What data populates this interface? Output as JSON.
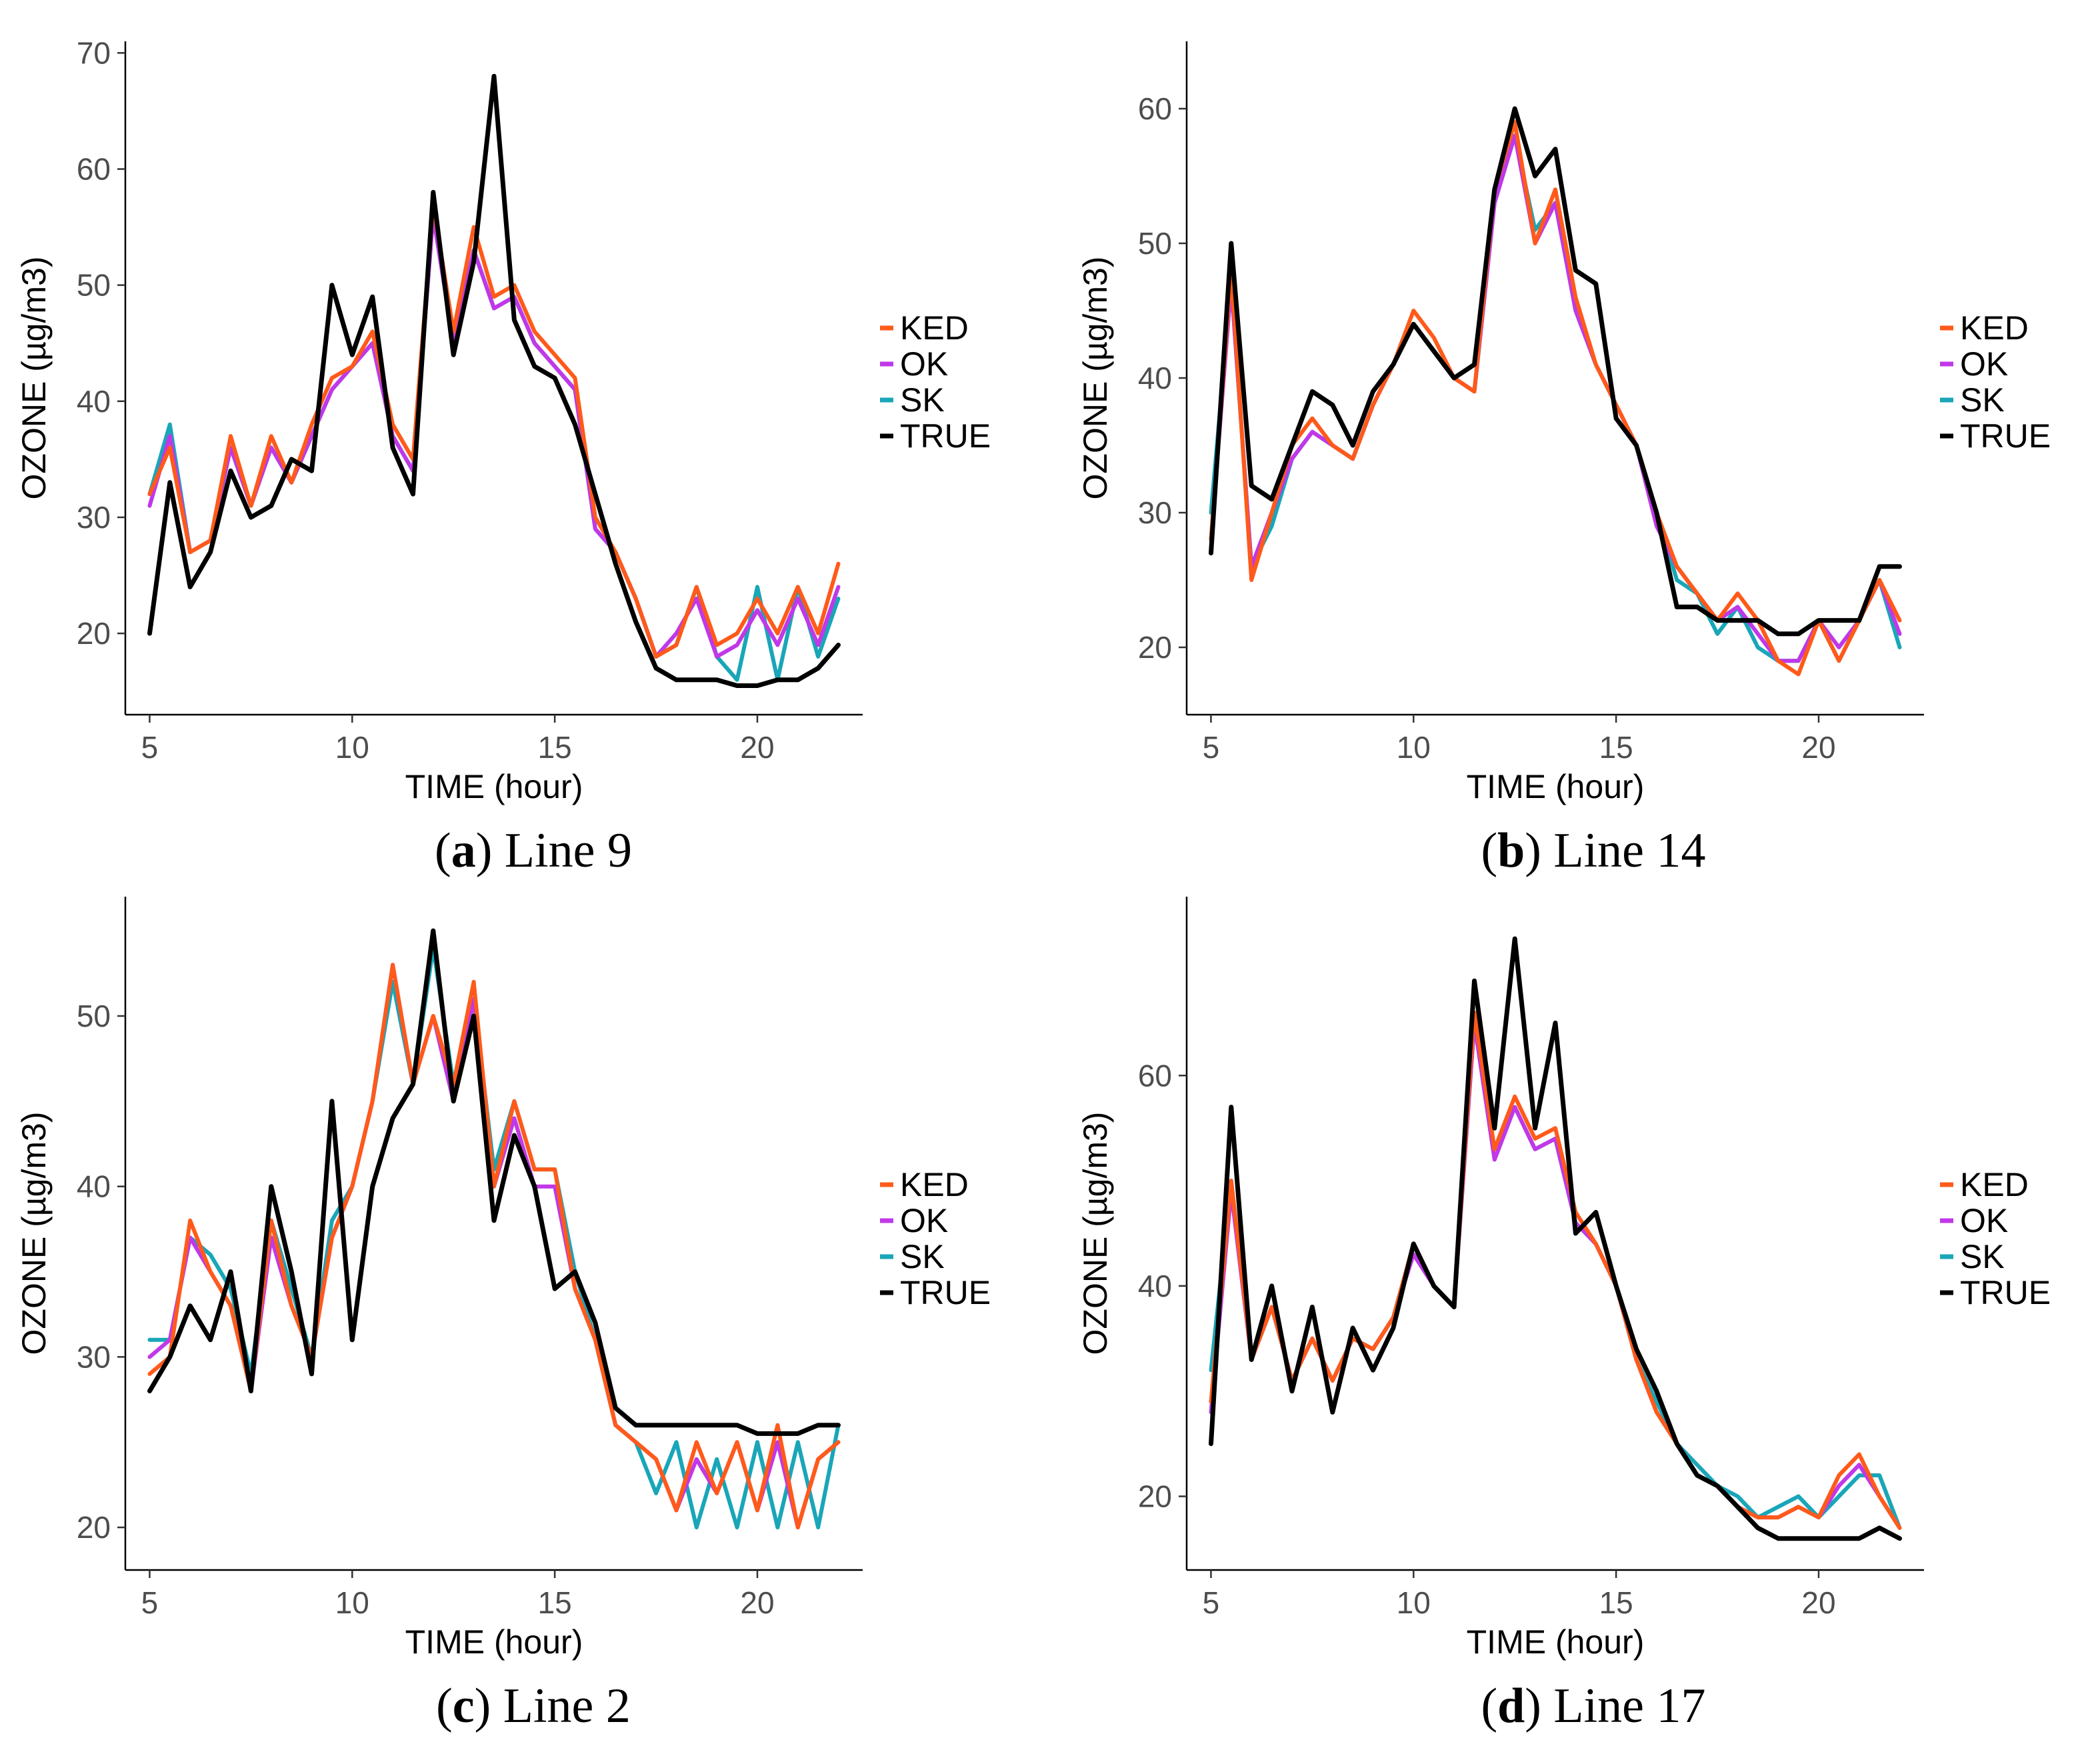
{
  "figure": {
    "legend_labels": [
      "KED",
      "OK",
      "SK",
      "TRUE"
    ],
    "series_colors": {
      "KED": "#ff5a1a",
      "OK": "#c038e8",
      "SK": "#19a6b8",
      "TRUE": "#000000"
    }
  },
  "chart_data": [
    {
      "type": "line",
      "panel_letter": "(a)",
      "caption_letter": "a",
      "caption_text": "Line 9",
      "xlabel": "TIME (hour)",
      "ylabel": "OZONE (µg/m3)",
      "xlim": [
        4.4,
        22.6
      ],
      "ylim": [
        13,
        71
      ],
      "xticks": [
        5,
        10,
        15,
        20
      ],
      "yticks": [
        20,
        30,
        40,
        50,
        60,
        70
      ],
      "x": [
        5,
        5.5,
        6,
        6.5,
        7,
        7.5,
        8,
        8.5,
        9,
        9.5,
        10,
        10.5,
        11,
        11.5,
        12,
        12.5,
        13,
        13.5,
        14,
        14.5,
        15,
        15.5,
        16,
        16.5,
        17,
        17.5,
        18,
        18.5,
        19,
        19.5,
        20,
        20.5,
        21,
        21.5,
        22
      ],
      "series": [
        {
          "name": "TRUE",
          "values": [
            20,
            33,
            24,
            27,
            34,
            30,
            31,
            35,
            34,
            50,
            44,
            49,
            36,
            32,
            58,
            44,
            52,
            68,
            47,
            43,
            42,
            38,
            32,
            26,
            21,
            17,
            16,
            16,
            16,
            15.5,
            15.5,
            16,
            16,
            17,
            19
          ]
        },
        {
          "name": "KED",
          "values": [
            32,
            36,
            27,
            28,
            37,
            31,
            37,
            33,
            38,
            42,
            43,
            46,
            38,
            35,
            57,
            46,
            55,
            49,
            50,
            46,
            44,
            42,
            30,
            27,
            23,
            18,
            19,
            24,
            19,
            20,
            23,
            20,
            24,
            20,
            26
          ]
        },
        {
          "name": "OK",
          "values": [
            31,
            37,
            27,
            28,
            36,
            31,
            36,
            33,
            37,
            41,
            43,
            45,
            37,
            34,
            56,
            45,
            53,
            48,
            49,
            45,
            43,
            41,
            29,
            27,
            23,
            18,
            20,
            23,
            18,
            19,
            22,
            19,
            23,
            19,
            24
          ]
        },
        {
          "name": "SK",
          "values": [
            32,
            38,
            27,
            28,
            36,
            31,
            36,
            33,
            37,
            41,
            43,
            45,
            37,
            34,
            56,
            45,
            53,
            48,
            49,
            45,
            43,
            41,
            29,
            27,
            23,
            18,
            19,
            24,
            18,
            16,
            24,
            16,
            24,
            18,
            23
          ]
        }
      ]
    },
    {
      "type": "line",
      "panel_letter": "(b)",
      "caption_letter": "b",
      "caption_text": "Line 14",
      "xlabel": "TIME (hour)",
      "ylabel": "OZONE (µg/m3)",
      "xlim": [
        4.4,
        22.6
      ],
      "ylim": [
        15,
        65
      ],
      "xticks": [
        5,
        10,
        15,
        20
      ],
      "yticks": [
        20,
        30,
        40,
        50,
        60
      ],
      "x": [
        5,
        5.5,
        6,
        6.5,
        7,
        7.5,
        8,
        8.5,
        9,
        9.5,
        10,
        10.5,
        11,
        11.5,
        12,
        12.5,
        13,
        13.5,
        14,
        14.5,
        15,
        15.5,
        16,
        16.5,
        17,
        17.5,
        18,
        18.5,
        19,
        19.5,
        20,
        20.5,
        21,
        21.5,
        22
      ],
      "series": [
        {
          "name": "TRUE",
          "values": [
            27,
            50,
            32,
            31,
            35,
            39,
            38,
            35,
            39,
            41,
            44,
            42,
            40,
            41,
            54,
            60,
            55,
            57,
            48,
            47,
            37,
            35,
            30,
            23,
            23,
            22,
            22,
            22,
            21,
            21,
            22,
            22,
            22,
            26,
            26
          ]
        },
        {
          "name": "KED",
          "values": [
            28,
            48,
            25,
            30,
            35,
            37,
            35,
            34,
            38,
            41,
            45,
            43,
            40,
            39,
            54,
            59,
            50,
            54,
            46,
            41,
            38,
            35,
            30,
            26,
            24,
            22,
            24,
            22,
            19,
            18,
            22,
            19,
            22,
            25,
            22
          ]
        },
        {
          "name": "OK",
          "values": [
            28,
            47,
            26,
            30,
            34,
            36,
            35,
            34,
            38,
            41,
            44,
            42,
            40,
            39,
            53,
            58,
            50,
            53,
            45,
            41,
            38,
            35,
            29,
            26,
            24,
            22,
            23,
            21,
            19,
            19,
            22,
            20,
            22,
            25,
            21
          ]
        },
        {
          "name": "SK",
          "values": [
            30,
            47,
            26,
            29,
            34,
            36,
            35,
            34,
            38,
            41,
            44,
            42,
            40,
            39,
            53,
            58,
            51,
            53,
            45,
            41,
            38,
            35,
            30,
            25,
            24,
            21,
            23,
            20,
            19,
            19,
            22,
            19,
            22,
            25,
            20
          ]
        }
      ]
    },
    {
      "type": "line",
      "panel_letter": "(c)",
      "caption_letter": "c",
      "caption_text": "Line 2",
      "xlabel": "TIME (hour)",
      "ylabel": "OZONE (µg/m3)",
      "xlim": [
        4.4,
        22.6
      ],
      "ylim": [
        17.5,
        57
      ],
      "xticks": [
        5,
        10,
        15,
        20
      ],
      "yticks": [
        20,
        30,
        40,
        50
      ],
      "x": [
        5,
        5.5,
        6,
        6.5,
        7,
        7.5,
        8,
        8.5,
        9,
        9.5,
        10,
        10.5,
        11,
        11.5,
        12,
        12.5,
        13,
        13.5,
        14,
        14.5,
        15,
        15.5,
        16,
        16.5,
        17,
        17.5,
        18,
        18.5,
        19,
        19.5,
        20,
        20.5,
        21,
        21.5,
        22
      ],
      "series": [
        {
          "name": "TRUE",
          "values": [
            28,
            30,
            33,
            31,
            35,
            28,
            40,
            35,
            29,
            45,
            31,
            40,
            44,
            46,
            55,
            45,
            50,
            38,
            43,
            40,
            34,
            35,
            32,
            27,
            26,
            26,
            26,
            26,
            26,
            26,
            25.5,
            25.5,
            25.5,
            26,
            26
          ]
        },
        {
          "name": "KED",
          "values": [
            29,
            30,
            38,
            35,
            33,
            28,
            38,
            33,
            30,
            37,
            40,
            45,
            53,
            46,
            50,
            46,
            52,
            40,
            45,
            41,
            41,
            34,
            31,
            26,
            25,
            24,
            21,
            25,
            22,
            25,
            21,
            26,
            20,
            24,
            25
          ]
        },
        {
          "name": "OK",
          "values": [
            30,
            31,
            37,
            35,
            33,
            28,
            37,
            33,
            30,
            37,
            40,
            45,
            53,
            46,
            50,
            45,
            51,
            40,
            44,
            40,
            40,
            34,
            31,
            26,
            25,
            24,
            21,
            24,
            22,
            25,
            21,
            25,
            20,
            24,
            25
          ]
        },
        {
          "name": "SK",
          "values": [
            31,
            31,
            37,
            36,
            34,
            29,
            38,
            34,
            30,
            38,
            40,
            45,
            52,
            46,
            54,
            46,
            51,
            41,
            45,
            41,
            41,
            35,
            31,
            26,
            25,
            22,
            25,
            20,
            24,
            20,
            25,
            20,
            25,
            20,
            26
          ]
        }
      ]
    },
    {
      "type": "line",
      "panel_letter": "(d)",
      "caption_letter": "d",
      "caption_text": "Line 17",
      "xlabel": "TIME (hour)",
      "ylabel": "OZONE (µg/m3)",
      "xlim": [
        4.4,
        22.6
      ],
      "ylim": [
        13,
        77
      ],
      "xticks": [
        5,
        10,
        15,
        20
      ],
      "yticks": [
        20,
        40,
        60
      ],
      "x": [
        5,
        5.5,
        6,
        6.5,
        7,
        7.5,
        8,
        8.5,
        9,
        9.5,
        10,
        10.5,
        11,
        11.5,
        12,
        12.5,
        13,
        13.5,
        14,
        14.5,
        15,
        15.5,
        16,
        16.5,
        17,
        17.5,
        18,
        18.5,
        19,
        19.5,
        20,
        20.5,
        21,
        21.5,
        22
      ],
      "series": [
        {
          "name": "TRUE",
          "values": [
            25,
            57,
            33,
            40,
            30,
            38,
            28,
            36,
            32,
            36,
            44,
            40,
            38,
            69,
            55,
            73,
            55,
            65,
            45,
            47,
            40,
            34,
            30,
            25,
            22,
            21,
            19,
            17,
            16,
            16,
            16,
            16,
            16,
            17,
            16
          ]
        },
        {
          "name": "KED",
          "values": [
            29,
            50,
            33,
            38,
            31,
            35,
            31,
            35,
            34,
            37,
            44,
            40,
            38,
            66,
            53,
            58,
            54,
            55,
            47,
            44,
            40,
            33,
            28,
            25,
            22,
            21,
            19,
            18,
            18,
            19,
            18,
            22,
            24,
            20,
            17
          ]
        },
        {
          "name": "OK",
          "values": [
            28,
            49,
            33,
            38,
            31,
            35,
            31,
            35,
            34,
            37,
            43,
            40,
            38,
            65,
            52,
            57,
            53,
            54,
            46,
            44,
            40,
            33,
            28,
            25,
            22,
            21,
            19,
            18,
            18,
            19,
            18,
            21,
            23,
            20,
            17
          ]
        },
        {
          "name": "SK",
          "values": [
            32,
            50,
            33,
            38,
            31,
            35,
            31,
            35,
            34,
            37,
            44,
            40,
            38,
            65,
            53,
            57,
            53,
            54,
            46,
            44,
            40,
            33,
            29,
            25,
            23,
            21,
            20,
            18,
            19,
            20,
            18,
            20,
            22,
            22,
            17
          ]
        }
      ]
    }
  ]
}
